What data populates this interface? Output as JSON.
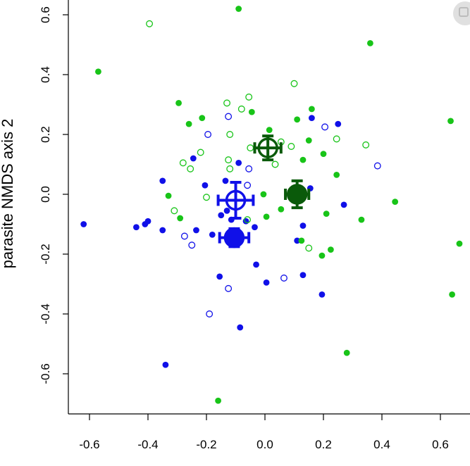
{
  "colors": {
    "blue": "#1010e8",
    "green": "#18c418",
    "dark_green": "#0a5a0a",
    "axis": "#000000"
  },
  "chart_data": {
    "type": "scatter",
    "title": "",
    "xlabel": "",
    "ylabel": "parasite NMDS axis 2",
    "xlim": [
      -0.66,
      0.68
    ],
    "ylim": [
      -0.72,
      0.65
    ],
    "xticks": [
      "-0.6",
      "-0.4",
      "-0.2",
      "0.0",
      "0.2",
      "0.4",
      "0.6"
    ],
    "xtick_values": [
      -0.6,
      -0.4,
      -0.2,
      0.0,
      0.2,
      0.4,
      0.6
    ],
    "yticks": [
      "-0.6",
      "-0.4",
      "-0.2",
      "0.0",
      "0.2",
      "0.4",
      "0.6"
    ],
    "ytick_values": [
      -0.6,
      -0.4,
      -0.2,
      0.0,
      0.2,
      0.4,
      0.6
    ],
    "grid": false,
    "series": [
      {
        "color": "blue",
        "fill": "filled",
        "points": [
          [
            -0.62,
            -0.1
          ],
          [
            -0.44,
            -0.11
          ],
          [
            -0.41,
            -0.1
          ],
          [
            -0.4,
            -0.09
          ],
          [
            -0.35,
            0.045
          ],
          [
            -0.35,
            -0.12
          ],
          [
            -0.34,
            -0.57
          ],
          [
            -0.245,
            0.12
          ],
          [
            -0.235,
            -0.12
          ],
          [
            -0.205,
            0.03
          ],
          [
            -0.18,
            -0.135
          ],
          [
            -0.155,
            -0.275
          ],
          [
            -0.15,
            -0.07
          ],
          [
            -0.135,
            0.045
          ],
          [
            -0.13,
            -0.055
          ],
          [
            -0.115,
            -0.085
          ],
          [
            -0.09,
            0.105
          ],
          [
            -0.085,
            -0.445
          ],
          [
            -0.065,
            -0.09
          ],
          [
            -0.035,
            -0.11
          ],
          [
            -0.03,
            -0.235
          ],
          [
            0.005,
            -0.295
          ],
          [
            0.11,
            -0.155
          ],
          [
            0.13,
            -0.27
          ],
          [
            0.13,
            -0.105
          ],
          [
            0.155,
            0.02
          ],
          [
            0.16,
            0.255
          ],
          [
            0.195,
            -0.335
          ],
          [
            0.25,
            0.235
          ],
          [
            0.27,
            -0.035
          ]
        ]
      },
      {
        "color": "blue",
        "fill": "open",
        "points": [
          [
            -0.275,
            -0.14
          ],
          [
            -0.25,
            -0.17
          ],
          [
            -0.195,
            0.2
          ],
          [
            -0.19,
            -0.4
          ],
          [
            -0.125,
            -0.315
          ],
          [
            -0.125,
            0.26
          ],
          [
            -0.055,
            0.085
          ],
          [
            -0.06,
            0.03
          ],
          [
            0.065,
            -0.28
          ],
          [
            0.205,
            0.225
          ],
          [
            0.385,
            0.095
          ]
        ]
      },
      {
        "color": "green",
        "fill": "filled",
        "points": [
          [
            -0.57,
            0.41
          ],
          [
            -0.09,
            0.62
          ],
          [
            0.36,
            0.505
          ],
          [
            -0.295,
            0.305
          ],
          [
            -0.26,
            0.235
          ],
          [
            -0.215,
            0.255
          ],
          [
            -0.33,
            -0.005
          ],
          [
            -0.29,
            -0.08
          ],
          [
            -0.045,
            0.275
          ],
          [
            -0.005,
            0.0
          ],
          [
            0.015,
            0.215
          ],
          [
            0.005,
            -0.075
          ],
          [
            0.055,
            -0.05
          ],
          [
            0.11,
            0.25
          ],
          [
            0.16,
            0.285
          ],
          [
            0.15,
            0.18
          ],
          [
            0.2,
            0.135
          ],
          [
            0.245,
            0.065
          ],
          [
            0.21,
            -0.065
          ],
          [
            0.225,
            -0.185
          ],
          [
            0.195,
            -0.205
          ],
          [
            0.33,
            -0.085
          ],
          [
            0.445,
            -0.025
          ],
          [
            0.635,
            0.245
          ],
          [
            0.665,
            -0.165
          ],
          [
            0.64,
            -0.335
          ],
          [
            0.28,
            -0.53
          ],
          [
            -0.16,
            -0.69
          ],
          [
            0.12,
            0.005
          ],
          [
            0.125,
            -0.155
          ],
          [
            0.13,
            0.115
          ]
        ]
      },
      {
        "color": "green",
        "fill": "open",
        "points": [
          [
            -0.395,
            0.57
          ],
          [
            -0.31,
            -0.055
          ],
          [
            -0.28,
            0.105
          ],
          [
            -0.255,
            0.085
          ],
          [
            -0.22,
            0.14
          ],
          [
            -0.2,
            -0.01
          ],
          [
            -0.13,
            0.305
          ],
          [
            -0.12,
            0.2
          ],
          [
            -0.125,
            0.115
          ],
          [
            -0.12,
            0.085
          ],
          [
            -0.08,
            0.285
          ],
          [
            -0.055,
            0.325
          ],
          [
            -0.05,
            0.155
          ],
          [
            -0.06,
            -0.085
          ],
          [
            0.035,
            0.1
          ],
          [
            0.055,
            0.175
          ],
          [
            0.09,
            0.16
          ],
          [
            0.1,
            0.37
          ],
          [
            0.15,
            -0.18
          ],
          [
            0.245,
            0.185
          ],
          [
            0.345,
            0.165
          ]
        ]
      }
    ],
    "centroids": [
      {
        "color": "blue",
        "fill": "open",
        "x": -0.1,
        "y": -0.02,
        "xerr": 0.06,
        "yerr": 0.06
      },
      {
        "color": "blue",
        "fill": "filled",
        "x": -0.105,
        "y": -0.145,
        "xerr": 0.05,
        "yerr": 0.03
      },
      {
        "color": "dark_green",
        "fill": "open",
        "x": 0.01,
        "y": 0.155,
        "xerr": 0.045,
        "yerr": 0.04
      },
      {
        "color": "dark_green",
        "fill": "filled",
        "x": 0.11,
        "y": 0.0,
        "xerr": 0.04,
        "yerr": 0.045
      }
    ]
  }
}
